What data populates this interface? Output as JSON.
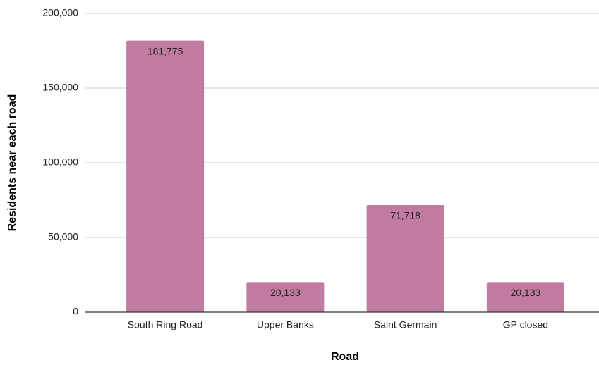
{
  "chart_data": {
    "type": "bar",
    "x_label": "Road",
    "y_label": "Residents near each road",
    "categories": [
      "South Ring Road",
      "Upper Banks",
      "Saint Germain",
      "GP closed"
    ],
    "values": [
      181775,
      20133,
      71718,
      20133
    ],
    "value_labels": [
      "181,775",
      "20,133",
      "71,718",
      "20,133"
    ],
    "color": "#c27ba0",
    "ylim": [
      0,
      200000
    ],
    "yticks": [
      0,
      {
        "value": 50000,
        "label": "50,000"
      },
      {
        "value": 100000,
        "label": "100,000"
      },
      {
        "value": 150000,
        "label": "150,000"
      },
      {
        "value": 200000,
        "label": "200,000"
      }
    ],
    "grid": true
  }
}
